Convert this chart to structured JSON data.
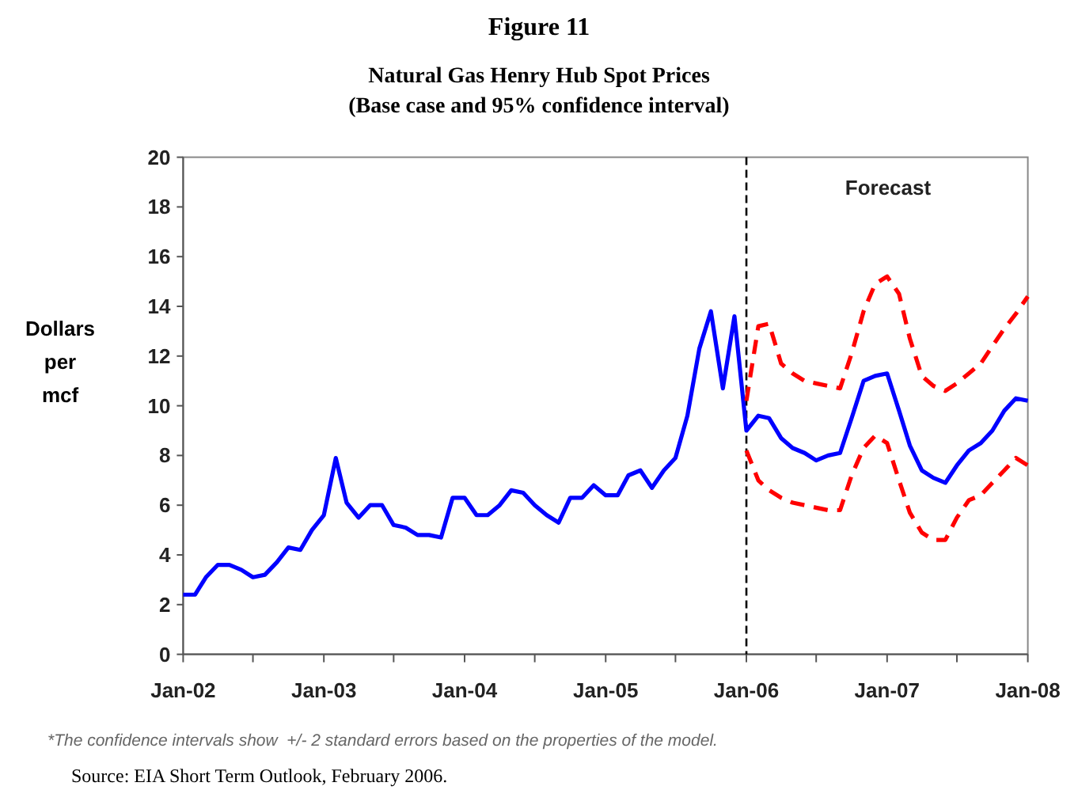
{
  "chart_data": {
    "type": "line",
    "title": "Natural Gas Henry Hub Spot Prices",
    "subtitle": "(Base case and 95% confidence interval)",
    "ylabel": "Dollars per mcf",
    "annotations": [
      "Figure 11",
      "Forecast",
      "*The confidence intervals show  +/- 2 standard errors based on the properties of the model.",
      "Source: EIA Short Term Outlook, February 2006."
    ],
    "x": [
      "2002-01",
      "2002-02",
      "2002-03",
      "2002-04",
      "2002-05",
      "2002-06",
      "2002-07",
      "2002-08",
      "2002-09",
      "2002-10",
      "2002-11",
      "2002-12",
      "2003-01",
      "2003-02",
      "2003-03",
      "2003-04",
      "2003-05",
      "2003-06",
      "2003-07",
      "2003-08",
      "2003-09",
      "2003-10",
      "2003-11",
      "2003-12",
      "2004-01",
      "2004-02",
      "2004-03",
      "2004-04",
      "2004-05",
      "2004-06",
      "2004-07",
      "2004-08",
      "2004-09",
      "2004-10",
      "2004-11",
      "2004-12",
      "2005-01",
      "2005-02",
      "2005-03",
      "2005-04",
      "2005-05",
      "2005-06",
      "2005-07",
      "2005-08",
      "2005-09",
      "2005-10",
      "2005-11",
      "2005-12",
      "2006-01",
      "2006-02",
      "2006-03",
      "2006-04",
      "2006-05",
      "2006-06",
      "2006-07",
      "2006-08",
      "2006-09",
      "2006-10",
      "2006-11",
      "2006-12",
      "2007-01",
      "2007-02",
      "2007-03",
      "2007-04",
      "2007-05",
      "2007-06",
      "2007-07",
      "2007-08",
      "2007-09",
      "2007-10",
      "2007-11",
      "2007-12",
      "2008-01"
    ],
    "series": [
      {
        "color": "#0000ff",
        "line_style": "solid",
        "values": [
          2.4,
          2.4,
          3.1,
          3.6,
          3.6,
          3.4,
          3.1,
          3.2,
          3.7,
          4.3,
          4.2,
          5.0,
          5.6,
          7.9,
          6.1,
          5.5,
          6.0,
          6.0,
          5.2,
          5.1,
          4.8,
          4.8,
          4.7,
          6.3,
          6.3,
          5.6,
          5.6,
          6.0,
          6.6,
          6.5,
          6.0,
          5.6,
          5.3,
          6.3,
          6.3,
          6.8,
          6.4,
          6.4,
          7.2,
          7.4,
          6.7,
          7.4,
          7.9,
          9.6,
          12.3,
          13.8,
          10.7,
          13.6,
          9.0,
          9.6,
          9.5,
          8.7,
          8.3,
          8.1,
          7.8,
          8.0,
          8.1,
          9.5,
          11.0,
          11.2,
          11.3,
          9.8,
          8.4,
          7.4,
          7.1,
          6.9,
          7.6,
          8.2,
          8.5,
          9.0,
          9.8,
          10.3,
          10.2
        ]
      },
      {
        "color": "#ff0000",
        "line_style": "dashed",
        "x": [
          "2006-01",
          "2006-02",
          "2006-03",
          "2006-04",
          "2006-05",
          "2006-06",
          "2006-07",
          "2006-08",
          "2006-09",
          "2006-10",
          "2006-11",
          "2006-12",
          "2007-01",
          "2007-02",
          "2007-03",
          "2007-04",
          "2007-05",
          "2007-06",
          "2007-07",
          "2007-08",
          "2007-09",
          "2007-10",
          "2007-11",
          "2007-12",
          "2008-01"
        ],
        "values": [
          10.2,
          13.2,
          13.3,
          11.7,
          11.3,
          11.0,
          10.9,
          10.8,
          10.7,
          12.1,
          13.8,
          14.9,
          15.2,
          14.5,
          12.7,
          11.2,
          10.8,
          10.6,
          10.9,
          11.3,
          11.7,
          12.4,
          13.1,
          13.7,
          14.4
        ]
      },
      {
        "color": "#ff0000",
        "line_style": "dashed",
        "x": [
          "2006-01",
          "2006-02",
          "2006-03",
          "2006-04",
          "2006-05",
          "2006-06",
          "2006-07",
          "2006-08",
          "2006-09",
          "2006-10",
          "2006-11",
          "2006-12",
          "2007-01",
          "2007-02",
          "2007-03",
          "2007-04",
          "2007-05",
          "2007-06",
          "2007-07",
          "2007-08",
          "2007-09",
          "2007-10",
          "2007-11",
          "2007-12",
          "2008-01"
        ],
        "values": [
          8.2,
          7.0,
          6.6,
          6.3,
          6.1,
          6.0,
          5.9,
          5.8,
          5.8,
          7.2,
          8.3,
          8.8,
          8.5,
          7.0,
          5.7,
          4.9,
          4.6,
          4.6,
          5.5,
          6.2,
          6.4,
          6.9,
          7.4,
          7.9,
          7.6
        ]
      }
    ],
    "xlim": [
      "2002-01",
      "2008-01"
    ],
    "xticks": [
      {
        "value": "2002-01",
        "label": "Jan-02"
      },
      {
        "value": "2002-07",
        "label": null
      },
      {
        "value": "2003-01",
        "label": "Jan-03"
      },
      {
        "value": "2003-07",
        "label": null
      },
      {
        "value": "2004-01",
        "label": "Jan-04"
      },
      {
        "value": "2004-07",
        "label": null
      },
      {
        "value": "2005-01",
        "label": "Jan-05"
      },
      {
        "value": "2005-07",
        "label": null
      },
      {
        "value": "2006-01",
        "label": "Jan-06"
      },
      {
        "value": "2006-07",
        "label": null
      },
      {
        "value": "2007-01",
        "label": "Jan-07"
      },
      {
        "value": "2007-07",
        "label": null
      },
      {
        "value": "2008-01",
        "label": "Jan-08"
      }
    ],
    "ylim": [
      0,
      20
    ],
    "yticks": [
      0,
      2,
      4,
      6,
      8,
      10,
      12,
      14,
      16,
      18,
      20
    ],
    "ref_lines": [
      {
        "axis": "x",
        "value": "2006-01",
        "color": "#000000",
        "line_style": "dashed"
      }
    ],
    "grid": false,
    "marker": "none"
  }
}
